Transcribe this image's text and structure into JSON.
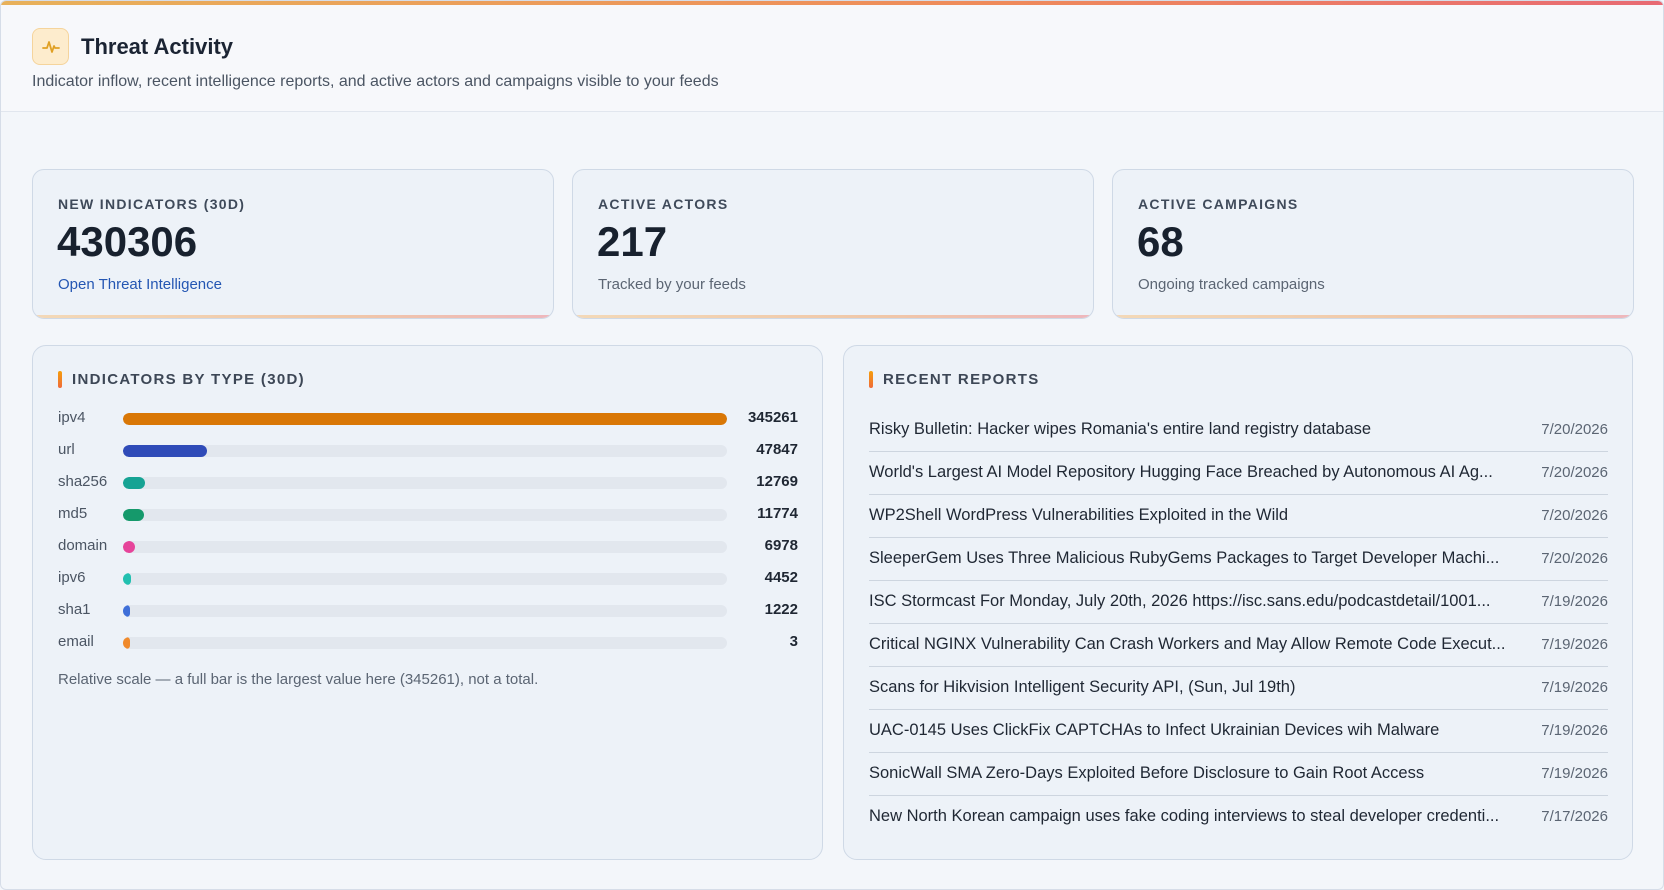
{
  "header": {
    "title": "Threat Activity",
    "subtitle": "Indicator inflow, recent intelligence reports, and active actors and campaigns visible to your feeds",
    "icon": "activity-pulse-icon"
  },
  "stats": [
    {
      "label": "NEW INDICATORS (30D)",
      "value": "430306",
      "foot": "Open Threat Intelligence",
      "foot_is_link": true
    },
    {
      "label": "ACTIVE ACTORS",
      "value": "217",
      "foot": "Tracked by your feeds"
    },
    {
      "label": "ACTIVE CAMPAIGNS",
      "value": "68",
      "foot": "Ongoing tracked campaigns"
    }
  ],
  "indicators_panel": {
    "title": "INDICATORS BY TYPE (30D)",
    "note": "Relative scale — a full bar is the largest value here (345261), not a total."
  },
  "chart_data": {
    "type": "bar",
    "orientation": "horizontal",
    "categories": [
      "ipv4",
      "url",
      "sha256",
      "md5",
      "domain",
      "ipv6",
      "sha1",
      "email"
    ],
    "values": [
      345261,
      47847,
      12769,
      11774,
      6978,
      4452,
      1222,
      3
    ],
    "value_labels": [
      "345261",
      "47847",
      "12769",
      "11774",
      "6978",
      "4452",
      "1222",
      "3"
    ],
    "colors": [
      "#d97706",
      "#2f4bb8",
      "#16a394",
      "#15996b",
      "#e6449a",
      "#22c0b0",
      "#3f6fd8",
      "#f08a2c"
    ],
    "xlim": [
      0,
      345261
    ]
  },
  "reports_panel": {
    "title": "RECENT REPORTS",
    "items": [
      {
        "title": "Risky Bulletin: Hacker wipes Romania's entire land registry database",
        "date": "7/20/2026"
      },
      {
        "title": "World's Largest AI Model Repository Hugging Face Breached by Autonomous AI Ag...",
        "date": "7/20/2026"
      },
      {
        "title": "WP2Shell WordPress Vulnerabilities Exploited in the Wild",
        "date": "7/20/2026"
      },
      {
        "title": "SleeperGem Uses Three Malicious RubyGems Packages to Target Developer Machi...",
        "date": "7/20/2026"
      },
      {
        "title": "ISC Stormcast For Monday, July 20th, 2026 https://isc.sans.edu/podcastdetail/1001...",
        "date": "7/19/2026"
      },
      {
        "title": "Critical NGINX Vulnerability Can Crash Workers and May Allow Remote Code Execut...",
        "date": "7/19/2026"
      },
      {
        "title": "Scans for Hikvision Intelligent Security API, (Sun, Jul 19th)",
        "date": "7/19/2026"
      },
      {
        "title": "UAC-0145 Uses ClickFix CAPTCHAs to Infect Ukrainian Devices wih Malware",
        "date": "7/19/2026"
      },
      {
        "title": "SonicWall SMA Zero-Days Exploited Before Disclosure to Gain Root Access",
        "date": "7/19/2026"
      },
      {
        "title": "New North Korean campaign uses fake coding interviews to steal developer credenti...",
        "date": "7/17/2026"
      }
    ]
  }
}
